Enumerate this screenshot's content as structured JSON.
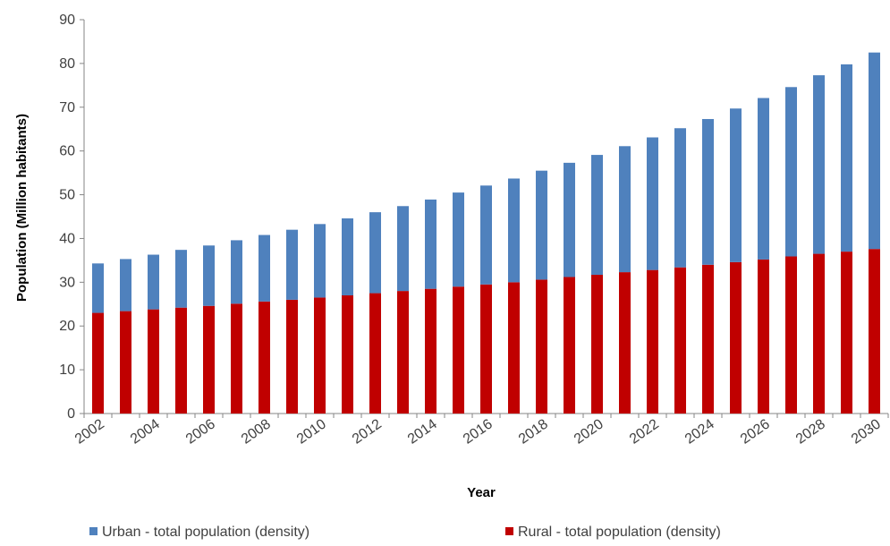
{
  "chart_data": {
    "type": "bar",
    "stacked": true,
    "xlabel": "Year",
    "ylabel": "Population (Million habitants)",
    "ylim": [
      0,
      90
    ],
    "yticks": [
      0,
      10,
      20,
      30,
      40,
      50,
      60,
      70,
      80,
      90
    ],
    "grid": false,
    "legend_position": "bottom",
    "categories": [
      "2002",
      "2003",
      "2004",
      "2005",
      "2006",
      "2007",
      "2008",
      "2009",
      "2010",
      "2011",
      "2012",
      "2013",
      "2014",
      "2015",
      "2016",
      "2017",
      "2018",
      "2019",
      "2020",
      "2021",
      "2022",
      "2023",
      "2024",
      "2025",
      "2026",
      "2027",
      "2028",
      "2029",
      "2030"
    ],
    "tick_labels": [
      "2002",
      "2004",
      "2006",
      "2008",
      "2010",
      "2012",
      "2014",
      "2016",
      "2018",
      "2020",
      "2022",
      "2024",
      "2026",
      "2028",
      "2030"
    ],
    "series": [
      {
        "name": "Rural - total population (density)",
        "color": "#C00000",
        "values": [
          23.0,
          23.4,
          23.8,
          24.2,
          24.6,
          25.1,
          25.6,
          26.0,
          26.5,
          27.0,
          27.5,
          28.0,
          28.5,
          29.0,
          29.5,
          30.0,
          30.6,
          31.2,
          31.7,
          32.3,
          32.8,
          33.4,
          34.0,
          34.6,
          35.2,
          35.9,
          36.5,
          37.0,
          37.6
        ]
      },
      {
        "name": "Urban - total population (density)",
        "color": "#4F81BD",
        "values": [
          11.3,
          11.9,
          12.5,
          13.2,
          13.8,
          14.5,
          15.2,
          16.0,
          16.8,
          17.6,
          18.5,
          19.4,
          20.4,
          21.5,
          22.6,
          23.7,
          24.9,
          26.1,
          27.4,
          28.8,
          30.3,
          31.8,
          33.3,
          35.1,
          36.9,
          38.7,
          40.8,
          42.8,
          44.9
        ]
      }
    ]
  }
}
